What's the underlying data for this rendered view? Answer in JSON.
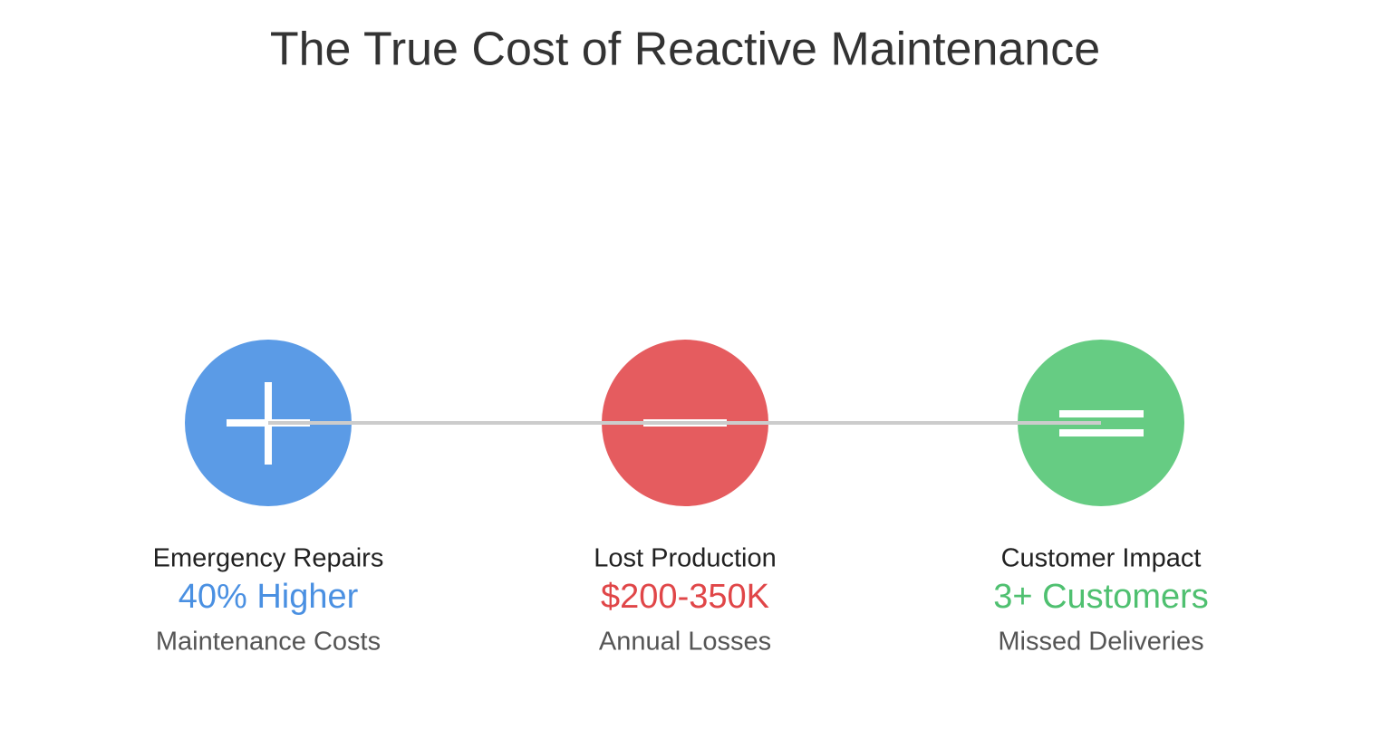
{
  "title": "The True Cost of Reactive Maintenance",
  "items": [
    {
      "label": "Emergency Repairs",
      "value": "40% Higher",
      "sublabel": "Maintenance Costs",
      "color": "#5b9be6",
      "value_color": "#4a90e2"
    },
    {
      "label": "Lost Production",
      "value": "$200-350K",
      "sublabel": "Annual Losses",
      "color": "#e55c5f",
      "value_color": "#e04648"
    },
    {
      "label": "Customer Impact",
      "value": "3+ Customers",
      "sublabel": "Missed Deliveries",
      "color": "#66cc83",
      "value_color": "#4fc070"
    }
  ]
}
